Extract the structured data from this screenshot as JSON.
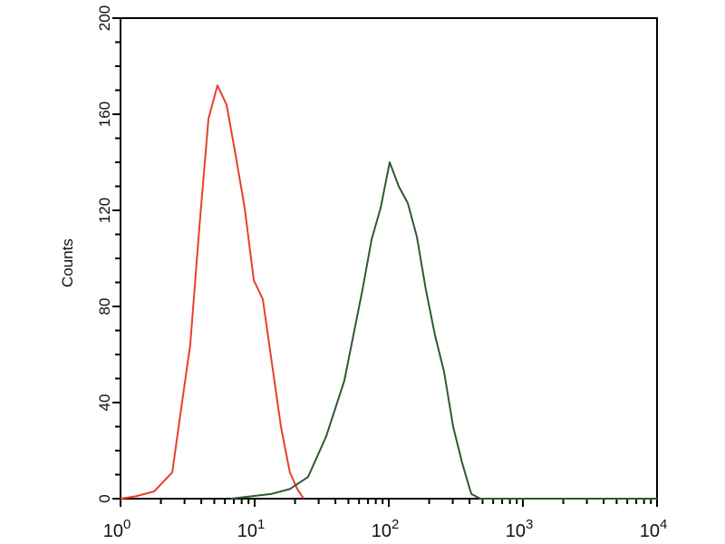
{
  "chart_data": {
    "type": "line",
    "title": "",
    "xlabel": "",
    "ylabel": "Counts",
    "xscale": "log",
    "xlim": [
      1,
      10000
    ],
    "ylim": [
      0,
      200
    ],
    "grid": false,
    "x_ticks": [
      {
        "base": "10",
        "exp": "0"
      },
      {
        "base": "10",
        "exp": "1"
      },
      {
        "base": "10",
        "exp": "2"
      },
      {
        "base": "10",
        "exp": "3"
      },
      {
        "base": "10",
        "exp": "4"
      }
    ],
    "y_ticks": [
      "0",
      "40",
      "80",
      "120",
      "160",
      "200"
    ],
    "series": [
      {
        "color": "#e8402a",
        "x": [
          1.0,
          1.3,
          1.78,
          2.43,
          2.84,
          3.31,
          3.87,
          4.52,
          5.28,
          6.17,
          7.21,
          8.43,
          9.84,
          11.5,
          13.4,
          15.7,
          18.3,
          20.8,
          23.2
        ],
        "y": [
          0,
          1,
          3,
          11,
          38,
          64,
          113,
          158,
          172,
          164,
          143,
          121,
          91,
          83,
          57,
          30,
          11,
          4,
          0
        ]
      },
      {
        "color": "#2f5a2f",
        "x": [
          6.67,
          13.4,
          18.3,
          25.0,
          34.2,
          46.6,
          63.7,
          74.5,
          86.9,
          101.6,
          118.7,
          138.6,
          162,
          189,
          221,
          258,
          302,
          352,
          412,
          481,
          10000
        ],
        "y": [
          0,
          2,
          4,
          9,
          26,
          49,
          87,
          108,
          121,
          140,
          130,
          123,
          109,
          87,
          68,
          53,
          30,
          15,
          2,
          0,
          0
        ]
      }
    ]
  }
}
